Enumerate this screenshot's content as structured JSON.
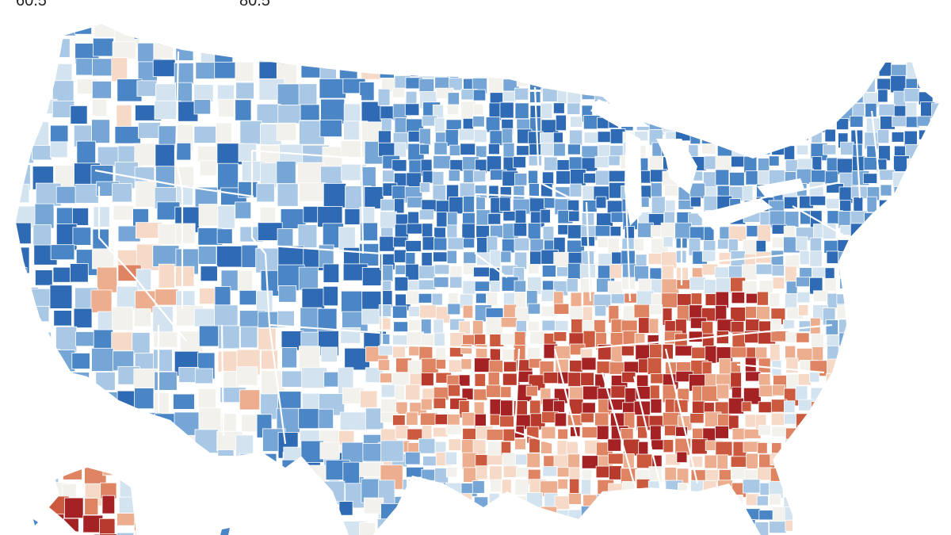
{
  "legend": {
    "left_label": "60.5",
    "right_label": "80.5"
  },
  "colors": {
    "background": "#ffffff",
    "border": "#ffffff",
    "scale": [
      "#2f6bb4",
      "#4a86c6",
      "#76a6d6",
      "#a8c8e6",
      "#d3e3f0",
      "#f2f1ec",
      "#f6d9c6",
      "#ecae8f",
      "#df8463",
      "#cc5a3f",
      "#b83a2c",
      "#a42224"
    ]
  }
}
